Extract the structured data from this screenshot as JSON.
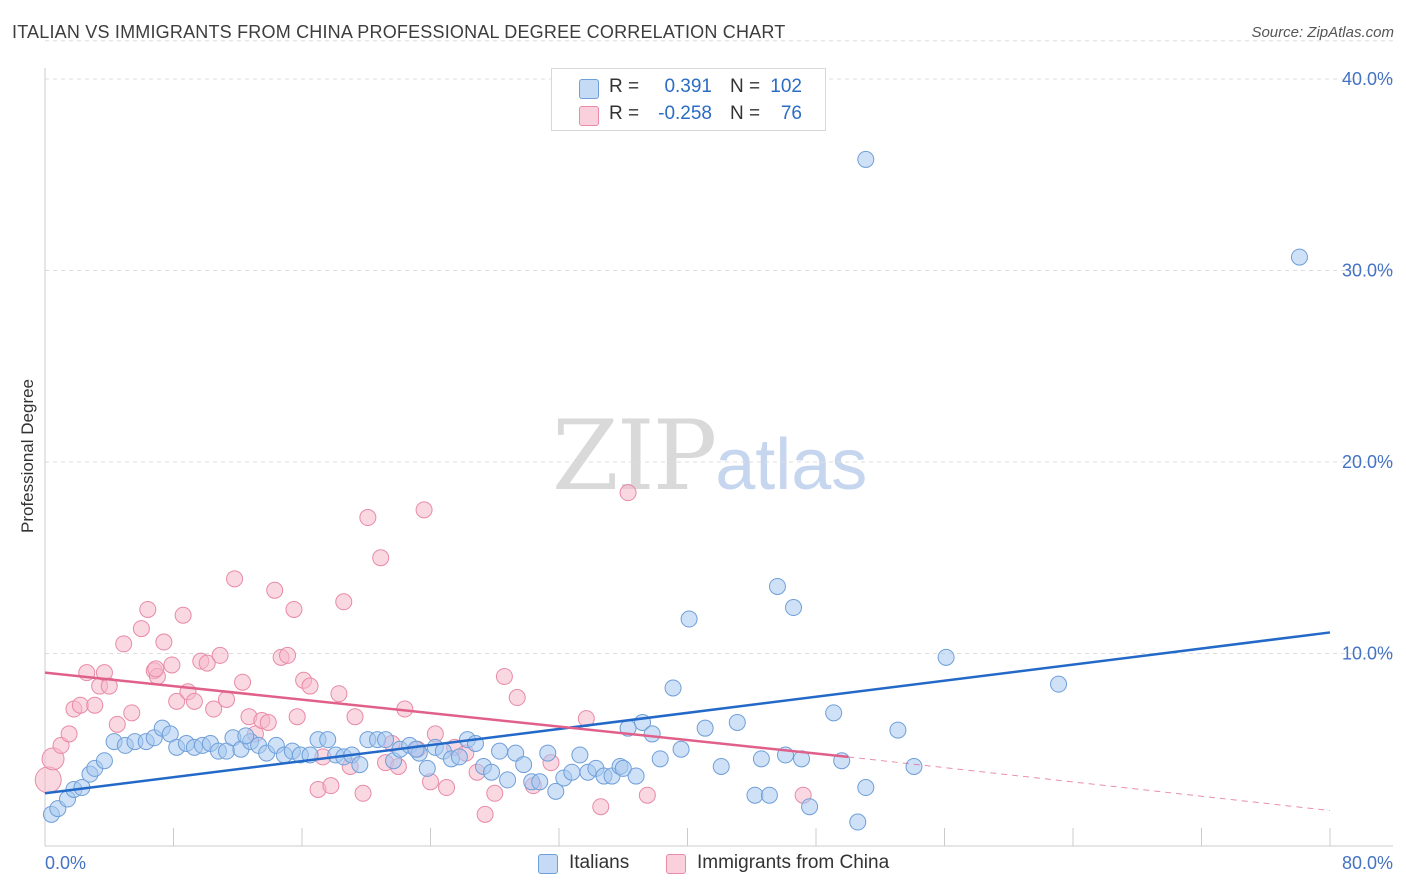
{
  "title": "ITALIAN VS IMMIGRANTS FROM CHINA PROFESSIONAL DEGREE CORRELATION CHART",
  "source": "Source: ZipAtlas.com",
  "watermark": {
    "zip": "ZIP",
    "atlas": "atlas"
  },
  "legend": {
    "rows": [
      {
        "r_label": "R =",
        "r_value": "0.391",
        "n_label": "N =",
        "n_value": "102",
        "color": "#a8c8f0"
      },
      {
        "r_label": "R =",
        "r_value": "-0.258",
        "n_label": "N =",
        "n_value": "76",
        "color": "#f5b8cb"
      }
    ]
  },
  "bottom_legend": {
    "italians": "Italians",
    "china": "Immigrants from China"
  },
  "colors": {
    "italians_fill": "#a8c8f0",
    "italians_stroke": "#6f9fd8",
    "italians_line": "#2369c8",
    "china_fill": "#f5b8cb",
    "china_stroke": "#e88aa8",
    "china_line": "#e0608a",
    "grid": "#dddddd",
    "tick_label": "#4472c4"
  },
  "chart_data": {
    "type": "scatter",
    "title": "ITALIAN VS IMMIGRANTS FROM CHINA PROFESSIONAL DEGREE CORRELATION CHART",
    "xlabel": "",
    "ylabel": "Professional Degree",
    "xlim": [
      0,
      80
    ],
    "ylim": [
      0,
      42
    ],
    "x_tick_labels": [
      "0.0%",
      "80.0%"
    ],
    "y_ticks": [
      10,
      20,
      30,
      40
    ],
    "y_tick_labels": [
      "10.0%",
      "20.0%",
      "30.0%",
      "40.0%"
    ],
    "grid": true,
    "legend_position": "top-center",
    "series": [
      {
        "name": "Italians",
        "trend": [
          [
            0,
            2.7
          ],
          [
            80,
            11.1
          ]
        ],
        "points": [
          [
            0.4,
            1.6
          ],
          [
            0.8,
            1.9
          ],
          [
            1.4,
            2.4
          ],
          [
            1.8,
            2.9
          ],
          [
            2.3,
            3.0
          ],
          [
            2.8,
            3.7
          ],
          [
            3.1,
            4.0
          ],
          [
            3.7,
            4.4
          ],
          [
            4.3,
            5.4
          ],
          [
            5.0,
            5.2
          ],
          [
            5.6,
            5.4
          ],
          [
            6.3,
            5.4
          ],
          [
            6.8,
            5.6
          ],
          [
            7.3,
            6.1
          ],
          [
            7.8,
            5.8
          ],
          [
            8.2,
            5.1
          ],
          [
            8.8,
            5.3
          ],
          [
            9.3,
            5.1
          ],
          [
            9.8,
            5.2
          ],
          [
            10.3,
            5.3
          ],
          [
            10.8,
            4.9
          ],
          [
            11.3,
            4.9
          ],
          [
            11.7,
            5.6
          ],
          [
            12.2,
            5.0
          ],
          [
            12.8,
            5.4
          ],
          [
            13.3,
            5.2
          ],
          [
            13.8,
            4.8
          ],
          [
            14.4,
            5.2
          ],
          [
            14.9,
            4.7
          ],
          [
            15.4,
            4.9
          ],
          [
            15.9,
            4.7
          ],
          [
            16.5,
            4.7
          ],
          [
            17.0,
            5.5
          ],
          [
            17.6,
            5.5
          ],
          [
            18.1,
            4.7
          ],
          [
            18.6,
            4.6
          ],
          [
            19.1,
            4.7
          ],
          [
            19.6,
            4.2
          ],
          [
            20.1,
            5.5
          ],
          [
            20.7,
            5.5
          ],
          [
            21.2,
            5.5
          ],
          [
            21.7,
            4.4
          ],
          [
            22.1,
            5.0
          ],
          [
            22.7,
            5.2
          ],
          [
            23.3,
            4.8
          ],
          [
            23.8,
            4.0
          ],
          [
            24.3,
            5.1
          ],
          [
            24.8,
            4.9
          ],
          [
            25.3,
            4.5
          ],
          [
            25.8,
            4.6
          ],
          [
            26.3,
            5.5
          ],
          [
            26.8,
            5.3
          ],
          [
            27.3,
            4.1
          ],
          [
            27.8,
            3.8
          ],
          [
            28.3,
            4.9
          ],
          [
            28.8,
            3.4
          ],
          [
            29.3,
            4.8
          ],
          [
            29.8,
            4.2
          ],
          [
            30.3,
            3.3
          ],
          [
            30.8,
            3.3
          ],
          [
            31.3,
            4.8
          ],
          [
            31.8,
            2.8
          ],
          [
            32.3,
            3.5
          ],
          [
            32.8,
            3.8
          ],
          [
            33.3,
            4.7
          ],
          [
            33.8,
            3.8
          ],
          [
            34.3,
            4.0
          ],
          [
            34.8,
            3.6
          ],
          [
            35.3,
            3.6
          ],
          [
            35.8,
            4.1
          ],
          [
            36.3,
            6.1
          ],
          [
            36.8,
            3.6
          ],
          [
            37.2,
            6.4
          ],
          [
            37.8,
            5.8
          ],
          [
            38.3,
            4.5
          ],
          [
            39.1,
            8.2
          ],
          [
            39.6,
            5.0
          ],
          [
            40.1,
            11.8
          ],
          [
            41.1,
            6.1
          ],
          [
            42.1,
            4.1
          ],
          [
            43.1,
            6.4
          ],
          [
            44.2,
            2.6
          ],
          [
            44.6,
            4.5
          ],
          [
            45.1,
            2.6
          ],
          [
            45.6,
            13.5
          ],
          [
            46.1,
            4.7
          ],
          [
            46.6,
            12.4
          ],
          [
            47.1,
            4.5
          ],
          [
            47.6,
            2.0
          ],
          [
            49.1,
            6.9
          ],
          [
            49.6,
            4.4
          ],
          [
            50.6,
            1.2
          ],
          [
            51.1,
            3.0
          ],
          [
            51.1,
            35.8
          ],
          [
            53.1,
            6.0
          ],
          [
            54.1,
            4.1
          ],
          [
            56.1,
            9.8
          ],
          [
            63.1,
            8.4
          ],
          [
            78.1,
            30.7
          ],
          [
            36.0,
            4.0
          ],
          [
            12.5,
            5.7
          ],
          [
            23.1,
            5.0
          ]
        ]
      },
      {
        "name": "Immigrants from China",
        "trend": [
          [
            0,
            9.0
          ],
          [
            50,
            4.6
          ]
        ],
        "trend_dashed": [
          [
            50,
            4.6
          ],
          [
            80,
            1.8
          ]
        ],
        "points": [
          [
            0.2,
            3.4
          ],
          [
            0.5,
            4.5
          ],
          [
            1.0,
            5.2
          ],
          [
            1.5,
            5.8
          ],
          [
            1.8,
            7.1
          ],
          [
            2.2,
            7.3
          ],
          [
            2.6,
            9.0
          ],
          [
            3.1,
            7.3
          ],
          [
            3.4,
            8.3
          ],
          [
            3.7,
            9.0
          ],
          [
            4.0,
            8.3
          ],
          [
            4.5,
            6.3
          ],
          [
            4.9,
            10.5
          ],
          [
            5.4,
            6.9
          ],
          [
            6.0,
            11.3
          ],
          [
            6.4,
            12.3
          ],
          [
            6.8,
            9.1
          ],
          [
            7.0,
            8.8
          ],
          [
            7.4,
            10.6
          ],
          [
            7.9,
            9.4
          ],
          [
            8.2,
            7.5
          ],
          [
            8.6,
            12.0
          ],
          [
            8.9,
            8.0
          ],
          [
            9.3,
            7.5
          ],
          [
            9.7,
            9.6
          ],
          [
            10.1,
            9.5
          ],
          [
            10.5,
            7.1
          ],
          [
            10.9,
            9.9
          ],
          [
            11.3,
            7.6
          ],
          [
            11.8,
            13.9
          ],
          [
            12.3,
            8.5
          ],
          [
            12.7,
            6.7
          ],
          [
            13.1,
            5.8
          ],
          [
            13.5,
            6.5
          ],
          [
            13.9,
            6.4
          ],
          [
            14.3,
            13.3
          ],
          [
            14.7,
            9.8
          ],
          [
            15.1,
            9.9
          ],
          [
            15.5,
            12.3
          ],
          [
            15.7,
            6.7
          ],
          [
            16.1,
            8.6
          ],
          [
            16.5,
            8.3
          ],
          [
            17.0,
            2.9
          ],
          [
            17.3,
            4.6
          ],
          [
            17.8,
            3.1
          ],
          [
            18.3,
            7.9
          ],
          [
            18.6,
            12.7
          ],
          [
            19.0,
            4.1
          ],
          [
            19.3,
            6.7
          ],
          [
            19.8,
            2.7
          ],
          [
            20.1,
            17.1
          ],
          [
            20.9,
            15.0
          ],
          [
            21.2,
            4.3
          ],
          [
            21.6,
            5.3
          ],
          [
            22.0,
            4.1
          ],
          [
            22.4,
            7.1
          ],
          [
            23.2,
            5.0
          ],
          [
            23.6,
            17.5
          ],
          [
            24.0,
            3.3
          ],
          [
            24.3,
            5.8
          ],
          [
            25.0,
            3.0
          ],
          [
            25.5,
            5.1
          ],
          [
            26.2,
            4.8
          ],
          [
            26.9,
            3.8
          ],
          [
            27.4,
            1.6
          ],
          [
            28.0,
            2.7
          ],
          [
            28.6,
            8.8
          ],
          [
            29.4,
            7.7
          ],
          [
            30.4,
            3.1
          ],
          [
            31.5,
            4.3
          ],
          [
            33.7,
            6.6
          ],
          [
            34.6,
            2.0
          ],
          [
            36.3,
            18.4
          ],
          [
            37.5,
            2.6
          ],
          [
            47.2,
            2.6
          ],
          [
            6.9,
            9.2
          ]
        ]
      }
    ]
  }
}
